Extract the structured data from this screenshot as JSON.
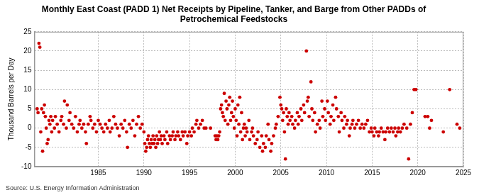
{
  "chart_data": {
    "type": "scatter",
    "title": [
      "Monthly East Coast (PADD 1) Net Receipts by Pipeline, Tanker, and Barge from Other PADDs of",
      "Petrochemical Feedstocks"
    ],
    "y_label": "Thousand Barrels per Day",
    "source": "Source: U.S. Energy Information Administration",
    "color": "#cc0000",
    "marker": "circle",
    "grid": true,
    "xlim": [
      1978,
      2025
    ],
    "xticks": [
      1985,
      1990,
      1995,
      2000,
      2005,
      2010,
      2015,
      2020,
      2025
    ],
    "ylim": [
      -10,
      25
    ],
    "yticks": [
      -10,
      -5,
      0,
      5,
      10,
      15,
      20,
      25
    ],
    "x": [
      1978.3,
      1978.4,
      1978.5,
      1978.6,
      1978.7,
      1978.8,
      1978.9,
      1979.0,
      1979.1,
      1979.2,
      1979.3,
      1979.4,
      1979.5,
      1979.6,
      1979.7,
      1979.8,
      1979.9,
      1980.0,
      1980.2,
      1980.3,
      1980.5,
      1980.7,
      1980.9,
      1981.0,
      1981.2,
      1981.3,
      1981.5,
      1981.6,
      1981.8,
      1981.9,
      1982.1,
      1982.3,
      1982.5,
      1982.7,
      1982.9,
      1983.0,
      1983.2,
      1983.4,
      1983.6,
      1983.7,
      1983.9,
      1984.1,
      1984.2,
      1984.4,
      1984.6,
      1984.8,
      1985.0,
      1985.2,
      1985.4,
      1985.6,
      1985.8,
      1986.0,
      1986.2,
      1986.3,
      1986.5,
      1986.7,
      1986.9,
      1987.1,
      1987.3,
      1987.5,
      1987.7,
      1987.9,
      1988.1,
      1988.2,
      1988.4,
      1988.6,
      1988.8,
      1989.0,
      1989.2,
      1989.4,
      1989.6,
      1989.8,
      1990.0,
      1990.1,
      1990.2,
      1990.3,
      1990.4,
      1990.5,
      1990.6,
      1990.7,
      1990.8,
      1990.9,
      1991.0,
      1991.1,
      1991.2,
      1991.3,
      1991.4,
      1991.5,
      1991.6,
      1991.7,
      1991.8,
      1991.9,
      1992.0,
      1992.2,
      1992.3,
      1992.5,
      1992.6,
      1992.8,
      1992.9,
      1993.1,
      1993.2,
      1993.4,
      1993.5,
      1993.7,
      1993.8,
      1994.0,
      1994.2,
      1994.3,
      1994.5,
      1994.7,
      1994.8,
      1995.0,
      1995.2,
      1995.3,
      1995.5,
      1995.7,
      1995.8,
      1996.0,
      1996.2,
      1996.4,
      1996.6,
      1996.8,
      1997.3,
      1997.8,
      1997.9,
      1998.0,
      1998.1,
      1998.2,
      1998.3,
      1998.4,
      1998.5,
      1998.6,
      1998.7,
      1998.8,
      1998.9,
      1999.0,
      1999.1,
      1999.2,
      1999.3,
      1999.4,
      1999.5,
      1999.6,
      1999.7,
      1999.8,
      1999.9,
      2000.0,
      2000.1,
      2000.2,
      2000.3,
      2000.4,
      2000.5,
      2000.6,
      2000.7,
      2000.8,
      2000.9,
      2001.0,
      2001.1,
      2001.2,
      2001.3,
      2001.5,
      2001.6,
      2001.8,
      2001.9,
      2002.0,
      2002.2,
      2002.4,
      2002.5,
      2002.7,
      2002.9,
      2003.0,
      2003.1,
      2003.3,
      2003.4,
      2003.6,
      2003.7,
      2003.9,
      2004.0,
      2004.2,
      2004.4,
      2004.5,
      2004.7,
      2004.9,
      2005.0,
      2005.1,
      2005.2,
      2005.3,
      2005.4,
      2005.5,
      2005.6,
      2005.7,
      2005.8,
      2005.9,
      2006.0,
      2006.2,
      2006.3,
      2006.5,
      2006.6,
      2006.8,
      2006.9,
      2007.0,
      2007.2,
      2007.3,
      2007.5,
      2007.6,
      2007.8,
      2007.9,
      2008.0,
      2008.1,
      2008.3,
      2008.4,
      2008.5,
      2008.7,
      2008.8,
      2009.0,
      2009.2,
      2009.3,
      2009.5,
      2009.6,
      2009.8,
      2009.9,
      2010.1,
      2010.2,
      2010.4,
      2010.5,
      2010.7,
      2010.8,
      2011.0,
      2011.1,
      2011.3,
      2011.4,
      2011.6,
      2011.7,
      2011.9,
      2012.0,
      2012.2,
      2012.3,
      2012.5,
      2012.6,
      2012.8,
      2012.9,
      2013.1,
      2013.3,
      2013.5,
      2013.7,
      2013.9,
      2014.1,
      2014.3,
      2014.5,
      2014.7,
      2014.9,
      2015.0,
      2015.2,
      2015.3,
      2015.5,
      2015.7,
      2015.8,
      2016.0,
      2016.2,
      2016.4,
      2016.5,
      2016.7,
      2016.9,
      2017.1,
      2017.3,
      2017.5,
      2017.6,
      2017.8,
      2017.9,
      2018.1,
      2018.3,
      2018.5,
      2018.8,
      2019.0,
      2019.2,
      2019.4,
      2019.6,
      2019.8,
      2020.8,
      2021.1,
      2021.3,
      2021.5,
      2022.8,
      2023.5,
      2024.3,
      2024.6
    ],
    "values": [
      5,
      4,
      22,
      21,
      -1,
      5,
      -6,
      4,
      6,
      3,
      0,
      -4,
      -3,
      2,
      1,
      3,
      -1,
      2,
      0,
      3,
      1,
      -1,
      2,
      3,
      1,
      7,
      0,
      6,
      2,
      4,
      1,
      0,
      3,
      -1,
      1,
      2,
      0,
      1,
      -1,
      -4,
      1,
      3,
      2,
      0,
      1,
      -1,
      2,
      1,
      0,
      -1,
      1,
      0,
      2,
      -1,
      0,
      3,
      1,
      0,
      -2,
      1,
      0,
      2,
      -1,
      -5,
      1,
      0,
      2,
      -2,
      1,
      3,
      0,
      1,
      -1,
      -4,
      -6,
      -5,
      -3,
      -2,
      -4,
      -5,
      -3,
      -4,
      -2,
      -4,
      -3,
      -5,
      -2,
      -4,
      -3,
      -1,
      -3,
      -2,
      -4,
      -2,
      -3,
      -1,
      -4,
      -2,
      -3,
      -2,
      -1,
      -3,
      -2,
      -1,
      -2,
      -3,
      -1,
      -2,
      -1,
      -4,
      -2,
      -1,
      -2,
      0,
      -1,
      1,
      2,
      0,
      1,
      2,
      0,
      0,
      0,
      -2,
      -3,
      -2,
      -3,
      -2,
      -1,
      5,
      6,
      4,
      3,
      9,
      2,
      7,
      5,
      1,
      6,
      8,
      2,
      4,
      7,
      3,
      0,
      5,
      2,
      -2,
      6,
      1,
      8,
      -1,
      4,
      -3,
      0,
      1,
      -2,
      0,
      -1,
      2,
      -3,
      -1,
      0,
      -2,
      -4,
      -3,
      -1,
      -5,
      -2,
      -6,
      -4,
      -5,
      -2,
      1,
      -3,
      -6,
      -4,
      -2,
      0,
      1,
      3,
      8,
      6,
      5,
      2,
      4,
      -1,
      -8,
      5,
      3,
      1,
      4,
      2,
      3,
      1,
      0,
      2,
      4,
      1,
      3,
      5,
      2,
      6,
      4,
      20,
      7,
      8,
      3,
      12,
      5,
      2,
      4,
      -1,
      1,
      2,
      0,
      7,
      3,
      5,
      2,
      7,
      4,
      1,
      3,
      6,
      2,
      8,
      5,
      3,
      -1,
      4,
      2,
      0,
      3,
      1,
      2,
      -2,
      0,
      1,
      2,
      0,
      1,
      2,
      0,
      1,
      0,
      1,
      2,
      -1,
      0,
      -1,
      -2,
      0,
      -1,
      -2,
      -1,
      0,
      -1,
      -3,
      -1,
      0,
      -1,
      0,
      -1,
      0,
      -2,
      -1,
      0,
      -1,
      0,
      1,
      0,
      -8,
      1,
      4,
      10,
      10,
      3,
      3,
      0,
      2,
      -1,
      10,
      1,
      0
    ]
  }
}
